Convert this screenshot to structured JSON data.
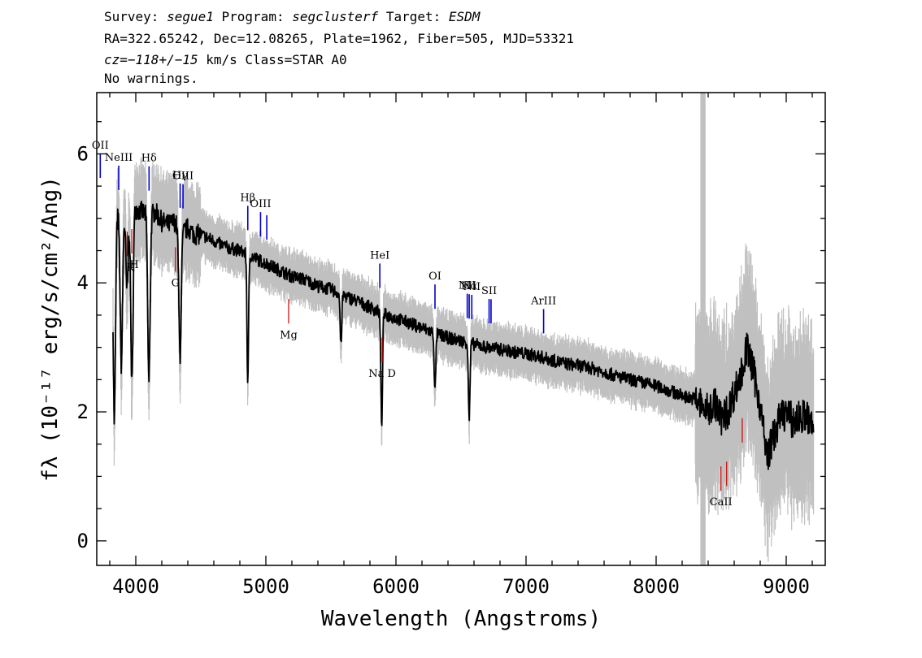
{
  "header": {
    "survey_label": "Survey:",
    "survey": "segue1",
    "program_label": "Program:",
    "program": "segclusterf",
    "target_label": "Target:",
    "target": "ESDM",
    "line2": "RA=322.65242, Dec=12.08265, Plate=1962, Fiber=505, MJD=53321",
    "cz_label": "cz=",
    "cz_value": "−118+/−15",
    "cz_rest": " km/s Class=STAR A0",
    "line4": "No warnings."
  },
  "chart_data": {
    "type": "line",
    "title": "",
    "xlabel": "Wavelength (Angstroms)",
    "ylabel": "fλ (10⁻¹⁷ erg/s/cm²/Ang)",
    "xlim": [
      3700,
      9300
    ],
    "ylim": [
      -0.38,
      6.95
    ],
    "xticks": [
      4000,
      5000,
      6000,
      7000,
      8000,
      9000
    ],
    "yticks": [
      0,
      2,
      4,
      6
    ],
    "grid": false,
    "masked_band": [
      8340,
      8380
    ],
    "colors": {
      "flux": "#000000",
      "error": "#c0c0c0",
      "emission": "#0000cc",
      "absorption": "#cc0000",
      "masked": "#c0c0c0"
    },
    "series": [
      {
        "x": [
          3800,
          3850,
          3900,
          3950,
          4000,
          4050,
          4100,
          4150,
          4200,
          4250,
          4300,
          4350,
          4400,
          4450,
          4500,
          4600,
          4700,
          4800,
          4900,
          5000,
          5100,
          5200,
          5300,
          5400,
          5500,
          5600,
          5700,
          5800,
          5900,
          6000,
          6100,
          6200,
          6300,
          6400,
          6500,
          6600,
          6700,
          6800,
          6900,
          7000,
          7100,
          7200,
          7300,
          7400,
          7500,
          7600,
          7700,
          7800,
          7900,
          8000,
          8100,
          8200,
          8300,
          8400,
          8450,
          8500,
          8550,
          8600,
          8650,
          8700,
          8750,
          8800,
          8850,
          8900,
          8950,
          9000,
          9050,
          9100,
          9150,
          9200
        ],
        "values": [
          5.25,
          5.1,
          5.0,
          5.25,
          5.15,
          5.1,
          5.05,
          5.1,
          4.95,
          4.9,
          4.95,
          4.75,
          4.85,
          4.75,
          4.75,
          4.65,
          4.55,
          4.5,
          4.4,
          4.3,
          4.2,
          4.1,
          4.05,
          3.95,
          3.9,
          3.8,
          3.72,
          3.62,
          3.52,
          3.45,
          3.38,
          3.3,
          3.22,
          3.15,
          3.1,
          3.05,
          3.0,
          2.97,
          2.93,
          2.9,
          2.86,
          2.8,
          2.75,
          2.72,
          2.68,
          2.62,
          2.55,
          2.5,
          2.45,
          2.4,
          2.33,
          2.25,
          2.2,
          2.0,
          2.15,
          1.9,
          2.0,
          2.3,
          2.55,
          3.0,
          2.6,
          2.1,
          1.3,
          1.6,
          1.9,
          2.0,
          1.85,
          1.9,
          1.95,
          1.75
        ]
      }
    ],
    "absorption_dips": [
      {
        "x": 3835,
        "depth": 3.3
      },
      {
        "x": 3889,
        "depth": 2.3
      },
      {
        "x": 3933,
        "depth": 1.3
      },
      {
        "x": 3970,
        "depth": 2.8
      },
      {
        "x": 4101,
        "depth": 2.6
      },
      {
        "x": 4340,
        "depth": 1.9
      },
      {
        "x": 4861,
        "depth": 2.0
      },
      {
        "x": 5577,
        "depth": 0.8
      },
      {
        "x": 5890,
        "depth": 1.8
      },
      {
        "x": 6300,
        "depth": 0.9
      },
      {
        "x": 6563,
        "depth": 1.2
      }
    ],
    "emission_lines": [
      {
        "label": "OII",
        "x": 3727
      },
      {
        "label": "NeIII",
        "x": 3869
      },
      {
        "label": "Hδ",
        "x": 4102
      },
      {
        "label": "Hγ",
        "x": 4341
      },
      {
        "label": "OIII",
        "x": 4363
      },
      {
        "label": "Hβ",
        "x": 4861
      },
      {
        "label": "OIII",
        "x": 4959
      },
      {
        "label": "",
        "x": 5007
      },
      {
        "label": "HeI",
        "x": 5876
      },
      {
        "label": "OI",
        "x": 6300
      },
      {
        "label": "NII",
        "x": 6548
      },
      {
        "label": "Hα",
        "x": 6563
      },
      {
        "label": "NII",
        "x": 6583
      },
      {
        "label": "SII",
        "x": 6716
      },
      {
        "label": "",
        "x": 6731
      },
      {
        "label": "ArIII",
        "x": 7135
      }
    ],
    "absorption_lines": [
      {
        "label": "K",
        "x": 3934
      },
      {
        "label": "H",
        "x": 3969
      },
      {
        "label": "G",
        "x": 4305
      },
      {
        "label": "Mg",
        "x": 5175
      },
      {
        "label": "Na D",
        "x": 5894
      },
      {
        "label": "CaII",
        "x": 8498
      },
      {
        "label": "",
        "x": 8542
      },
      {
        "label": "",
        "x": 8662
      }
    ]
  }
}
